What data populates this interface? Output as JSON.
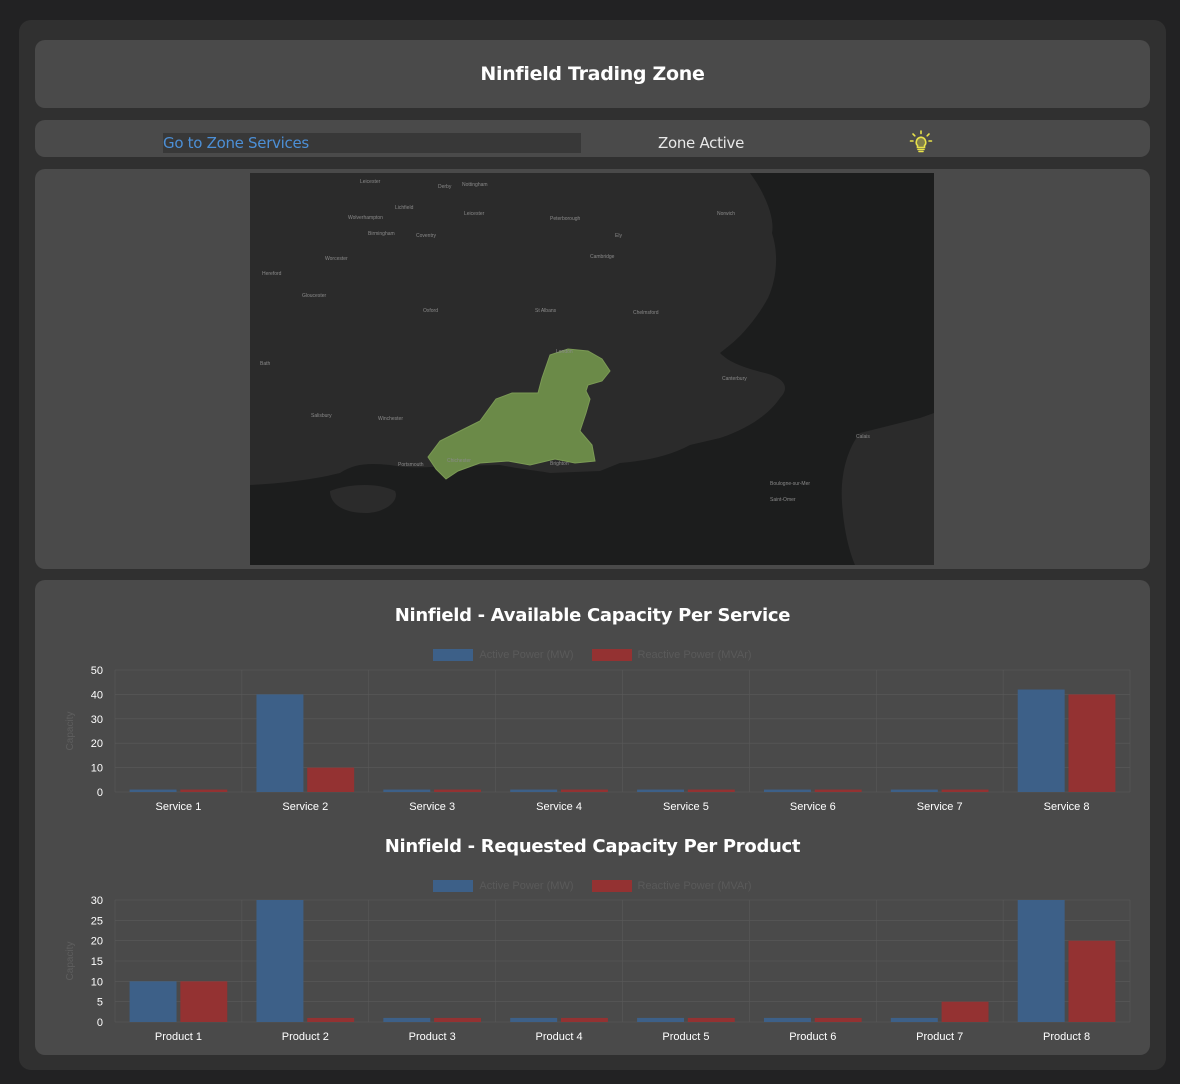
{
  "header": {
    "title": "Ninfield Trading Zone"
  },
  "nav": {
    "link_label": "Go to Zone Services",
    "status": "Zone Active",
    "status_icon": "lightbulb-icon"
  },
  "colors": {
    "active": "#3d6088",
    "reactive": "#943232",
    "link": "#4c8fd6",
    "zone": "#6b8a48",
    "bulb": "#e8e24a"
  },
  "map": {
    "labels": [
      "Leicester",
      "Derby",
      "Nottingham",
      "Lichfield",
      "Wolverhampton",
      "Leicester",
      "Peterborough",
      "Norwich",
      "Ely",
      "Birmingham",
      "Coventry",
      "Cambridge",
      "Hereford",
      "Worcester",
      "Gloucester",
      "Oxford",
      "St Albans",
      "Chelmsford",
      "London",
      "Bath",
      "Canterbury",
      "Salisbury",
      "Winchester",
      "Chichester",
      "Portsmouth",
      "Brighton",
      "Calais",
      "Boulogne-sur-Mer",
      "Saint-Omer"
    ]
  },
  "chart_data": [
    {
      "type": "bar",
      "title": "Ninfield - Available Capacity Per Service",
      "ylabel": "Capacity",
      "ylim": [
        0,
        50
      ],
      "yticks": [
        0,
        10,
        20,
        30,
        40,
        50
      ],
      "categories": [
        "Service 1",
        "Service 2",
        "Service 3",
        "Service 4",
        "Service 5",
        "Service 6",
        "Service 7",
        "Service 8"
      ],
      "series": [
        {
          "name": "Active Power (MW)",
          "values": [
            1,
            40,
            1,
            1,
            1,
            1,
            1,
            42
          ]
        },
        {
          "name": "Reactive Power (MVAr)",
          "values": [
            1,
            10,
            1,
            1,
            1,
            1,
            1,
            40
          ]
        }
      ],
      "grid": true,
      "legend": "top-center"
    },
    {
      "type": "bar",
      "title": "Ninfield - Requested Capacity Per Product",
      "ylabel": "Capacity",
      "ylim": [
        0,
        30
      ],
      "yticks": [
        0,
        5,
        10,
        15,
        20,
        25,
        30
      ],
      "categories": [
        "Product 1",
        "Product 2",
        "Product 3",
        "Product 4",
        "Product 5",
        "Product 6",
        "Product 7",
        "Product 8"
      ],
      "series": [
        {
          "name": "Active Power (MW)",
          "values": [
            10,
            30,
            1,
            1,
            1,
            1,
            1,
            30
          ]
        },
        {
          "name": "Reactive Power (MVAr)",
          "values": [
            10,
            1,
            1,
            1,
            1,
            1,
            5,
            20
          ]
        }
      ],
      "grid": true,
      "legend": "top-center"
    }
  ]
}
